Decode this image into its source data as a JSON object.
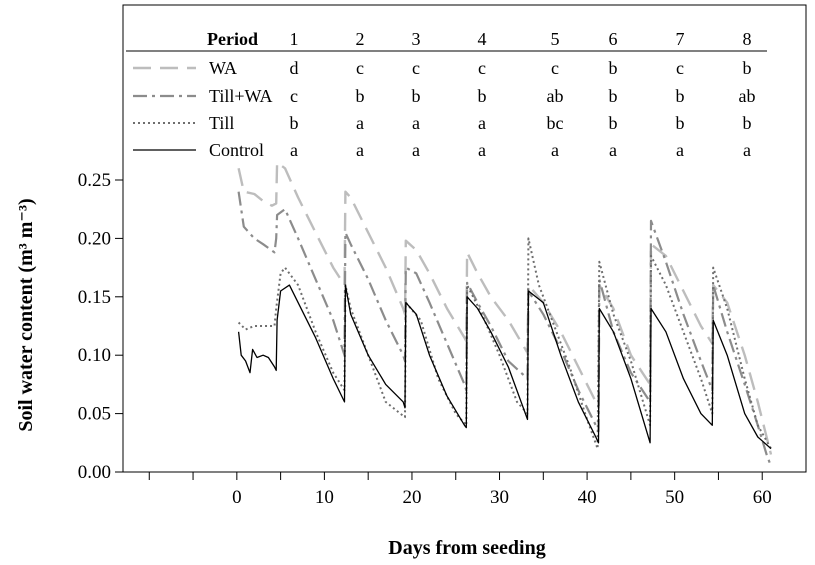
{
  "chart_data": {
    "type": "line",
    "xlabel": "Days from seeding",
    "ylabel": "Soil water content (m³ m⁻³)",
    "xlim": [
      -13,
      65
    ],
    "ylim": [
      0,
      0.25
    ],
    "x_ticks": [
      0,
      10,
      20,
      30,
      40,
      50,
      60
    ],
    "y_ticks": [
      0.0,
      0.05,
      0.1,
      0.15,
      0.2,
      0.25
    ],
    "y_tick_labels": [
      "0.00",
      "0.05",
      "0.10",
      "0.15",
      "0.20",
      "0.25"
    ],
    "grid": false,
    "legend": {
      "placement": "top",
      "header_label": "Period",
      "periods": [
        "1",
        "2",
        "3",
        "4",
        "5",
        "6",
        "7",
        "8"
      ],
      "rows": [
        {
          "name": "WA",
          "letters": [
            "d",
            "c",
            "c",
            "c",
            "c",
            "b",
            "c",
            "b"
          ]
        },
        {
          "name": "Till+WA",
          "letters": [
            "c",
            "b",
            "b",
            "b",
            "ab",
            "b",
            "b",
            "ab"
          ]
        },
        {
          "name": "Till",
          "letters": [
            "b",
            "a",
            "a",
            "a",
            "bc",
            "b",
            "b",
            "b"
          ]
        },
        {
          "name": "Control",
          "letters": [
            "a",
            "a",
            "a",
            "a",
            "a",
            "a",
            "a",
            "a"
          ]
        }
      ]
    },
    "series": [
      {
        "name": "WA",
        "color": "#bdbdbd",
        "style": "long-dash",
        "points": [
          [
            0.2,
            0.26
          ],
          [
            0.8,
            0.24
          ],
          [
            2,
            0.238
          ],
          [
            3,
            0.232
          ],
          [
            4,
            0.228
          ],
          [
            4.5,
            0.23
          ],
          [
            4.6,
            0.265
          ],
          [
            5.5,
            0.26
          ],
          [
            7,
            0.235
          ],
          [
            9,
            0.205
          ],
          [
            11,
            0.175
          ],
          [
            12.3,
            0.16
          ],
          [
            12.4,
            0.24
          ],
          [
            13,
            0.235
          ],
          [
            15,
            0.205
          ],
          [
            17,
            0.175
          ],
          [
            19,
            0.14
          ],
          [
            19.2,
            0.135
          ],
          [
            19.3,
            0.198
          ],
          [
            20.5,
            0.19
          ],
          [
            22,
            0.17
          ],
          [
            24,
            0.14
          ],
          [
            26,
            0.115
          ],
          [
            26.2,
            0.112
          ],
          [
            26.3,
            0.188
          ],
          [
            27.5,
            0.17
          ],
          [
            29,
            0.15
          ],
          [
            31,
            0.13
          ],
          [
            33.2,
            0.102
          ],
          [
            33.3,
            0.16
          ],
          [
            35,
            0.145
          ],
          [
            37,
            0.12
          ],
          [
            39,
            0.09
          ],
          [
            41,
            0.06
          ],
          [
            41.3,
            0.055
          ],
          [
            41.4,
            0.16
          ],
          [
            43,
            0.14
          ],
          [
            45,
            0.1
          ],
          [
            47.2,
            0.075
          ],
          [
            47.3,
            0.195
          ],
          [
            49,
            0.185
          ],
          [
            51,
            0.155
          ],
          [
            53,
            0.125
          ],
          [
            54.3,
            0.11
          ],
          [
            54.4,
            0.16
          ],
          [
            56,
            0.145
          ],
          [
            58,
            0.1
          ],
          [
            59.5,
            0.06
          ],
          [
            60.5,
            0.03
          ],
          [
            61,
            0.015
          ]
        ]
      },
      {
        "name": "Till+WA",
        "color": "#8c8c8c",
        "style": "dash-dot",
        "points": [
          [
            0.2,
            0.24
          ],
          [
            0.8,
            0.21
          ],
          [
            2,
            0.2
          ],
          [
            3,
            0.195
          ],
          [
            4.3,
            0.188
          ],
          [
            4.5,
            0.2
          ],
          [
            4.6,
            0.22
          ],
          [
            5.5,
            0.225
          ],
          [
            7,
            0.2
          ],
          [
            9,
            0.165
          ],
          [
            11,
            0.13
          ],
          [
            12.3,
            0.1
          ],
          [
            12.4,
            0.205
          ],
          [
            13,
            0.195
          ],
          [
            15,
            0.165
          ],
          [
            17,
            0.13
          ],
          [
            19,
            0.1
          ],
          [
            19.2,
            0.095
          ],
          [
            19.3,
            0.175
          ],
          [
            20.5,
            0.17
          ],
          [
            22,
            0.145
          ],
          [
            24,
            0.11
          ],
          [
            26,
            0.075
          ],
          [
            26.2,
            0.07
          ],
          [
            26.3,
            0.162
          ],
          [
            27.5,
            0.145
          ],
          [
            29,
            0.125
          ],
          [
            31,
            0.095
          ],
          [
            33.2,
            0.08
          ],
          [
            33.3,
            0.155
          ],
          [
            35,
            0.135
          ],
          [
            37,
            0.105
          ],
          [
            39,
            0.07
          ],
          [
            41,
            0.04
          ],
          [
            41.3,
            0.035
          ],
          [
            41.4,
            0.165
          ],
          [
            43,
            0.12
          ],
          [
            45,
            0.085
          ],
          [
            47.2,
            0.06
          ],
          [
            47.3,
            0.215
          ],
          [
            49,
            0.18
          ],
          [
            51,
            0.135
          ],
          [
            53,
            0.095
          ],
          [
            54.3,
            0.07
          ],
          [
            54.4,
            0.16
          ],
          [
            56,
            0.12
          ],
          [
            58,
            0.075
          ],
          [
            59.5,
            0.04
          ],
          [
            60.5,
            0.015
          ],
          [
            61,
            0.005
          ]
        ]
      },
      {
        "name": "Till",
        "color": "#6e6e6e",
        "style": "dotted",
        "points": [
          [
            0.2,
            0.128
          ],
          [
            1,
            0.122
          ],
          [
            2,
            0.125
          ],
          [
            3,
            0.125
          ],
          [
            4.3,
            0.125
          ],
          [
            4.5,
            0.14
          ],
          [
            5,
            0.17
          ],
          [
            5.5,
            0.175
          ],
          [
            7,
            0.16
          ],
          [
            9,
            0.12
          ],
          [
            11,
            0.085
          ],
          [
            12.3,
            0.07
          ],
          [
            12.4,
            0.16
          ],
          [
            13,
            0.14
          ],
          [
            15,
            0.1
          ],
          [
            17,
            0.06
          ],
          [
            19,
            0.048
          ],
          [
            19.2,
            0.047
          ],
          [
            19.3,
            0.145
          ],
          [
            21,
            0.13
          ],
          [
            23,
            0.08
          ],
          [
            25,
            0.05
          ],
          [
            26.2,
            0.04
          ],
          [
            26.3,
            0.16
          ],
          [
            28,
            0.135
          ],
          [
            30,
            0.1
          ],
          [
            32,
            0.06
          ],
          [
            33.2,
            0.05
          ],
          [
            33.3,
            0.2
          ],
          [
            34.5,
            0.16
          ],
          [
            36,
            0.13
          ],
          [
            38,
            0.09
          ],
          [
            40,
            0.045
          ],
          [
            41.2,
            0.02
          ],
          [
            41.4,
            0.18
          ],
          [
            43,
            0.135
          ],
          [
            45,
            0.095
          ],
          [
            47.2,
            0.04
          ],
          [
            47.3,
            0.185
          ],
          [
            49,
            0.16
          ],
          [
            51,
            0.12
          ],
          [
            53,
            0.08
          ],
          [
            54.3,
            0.05
          ],
          [
            54.4,
            0.175
          ],
          [
            56,
            0.14
          ],
          [
            58,
            0.08
          ],
          [
            59.5,
            0.04
          ],
          [
            61,
            0.02
          ]
        ]
      },
      {
        "name": "Control",
        "color": "#000000",
        "style": "solid",
        "points": [
          [
            0.2,
            0.12
          ],
          [
            0.5,
            0.1
          ],
          [
            1,
            0.095
          ],
          [
            1.5,
            0.085
          ],
          [
            1.8,
            0.105
          ],
          [
            2.3,
            0.098
          ],
          [
            3,
            0.1
          ],
          [
            3.6,
            0.098
          ],
          [
            4.3,
            0.09
          ],
          [
            4.5,
            0.087
          ],
          [
            4.6,
            0.13
          ],
          [
            5,
            0.155
          ],
          [
            6,
            0.16
          ],
          [
            7,
            0.145
          ],
          [
            9,
            0.115
          ],
          [
            11,
            0.08
          ],
          [
            12.3,
            0.06
          ],
          [
            12.4,
            0.16
          ],
          [
            13,
            0.135
          ],
          [
            15,
            0.1
          ],
          [
            17,
            0.075
          ],
          [
            19,
            0.06
          ],
          [
            19.2,
            0.055
          ],
          [
            19.3,
            0.145
          ],
          [
            20.5,
            0.135
          ],
          [
            22,
            0.1
          ],
          [
            24,
            0.065
          ],
          [
            26,
            0.04
          ],
          [
            26.2,
            0.038
          ],
          [
            26.3,
            0.15
          ],
          [
            27.5,
            0.14
          ],
          [
            29,
            0.12
          ],
          [
            31,
            0.09
          ],
          [
            33.2,
            0.045
          ],
          [
            33.3,
            0.155
          ],
          [
            35,
            0.145
          ],
          [
            37,
            0.1
          ],
          [
            39,
            0.06
          ],
          [
            41,
            0.03
          ],
          [
            41.3,
            0.025
          ],
          [
            41.4,
            0.14
          ],
          [
            43,
            0.12
          ],
          [
            45,
            0.08
          ],
          [
            47.2,
            0.025
          ],
          [
            47.3,
            0.14
          ],
          [
            49,
            0.12
          ],
          [
            51,
            0.08
          ],
          [
            53,
            0.05
          ],
          [
            54.3,
            0.04
          ],
          [
            54.4,
            0.13
          ],
          [
            56,
            0.1
          ],
          [
            58,
            0.05
          ],
          [
            59.5,
            0.03
          ],
          [
            61,
            0.02
          ]
        ]
      }
    ]
  }
}
